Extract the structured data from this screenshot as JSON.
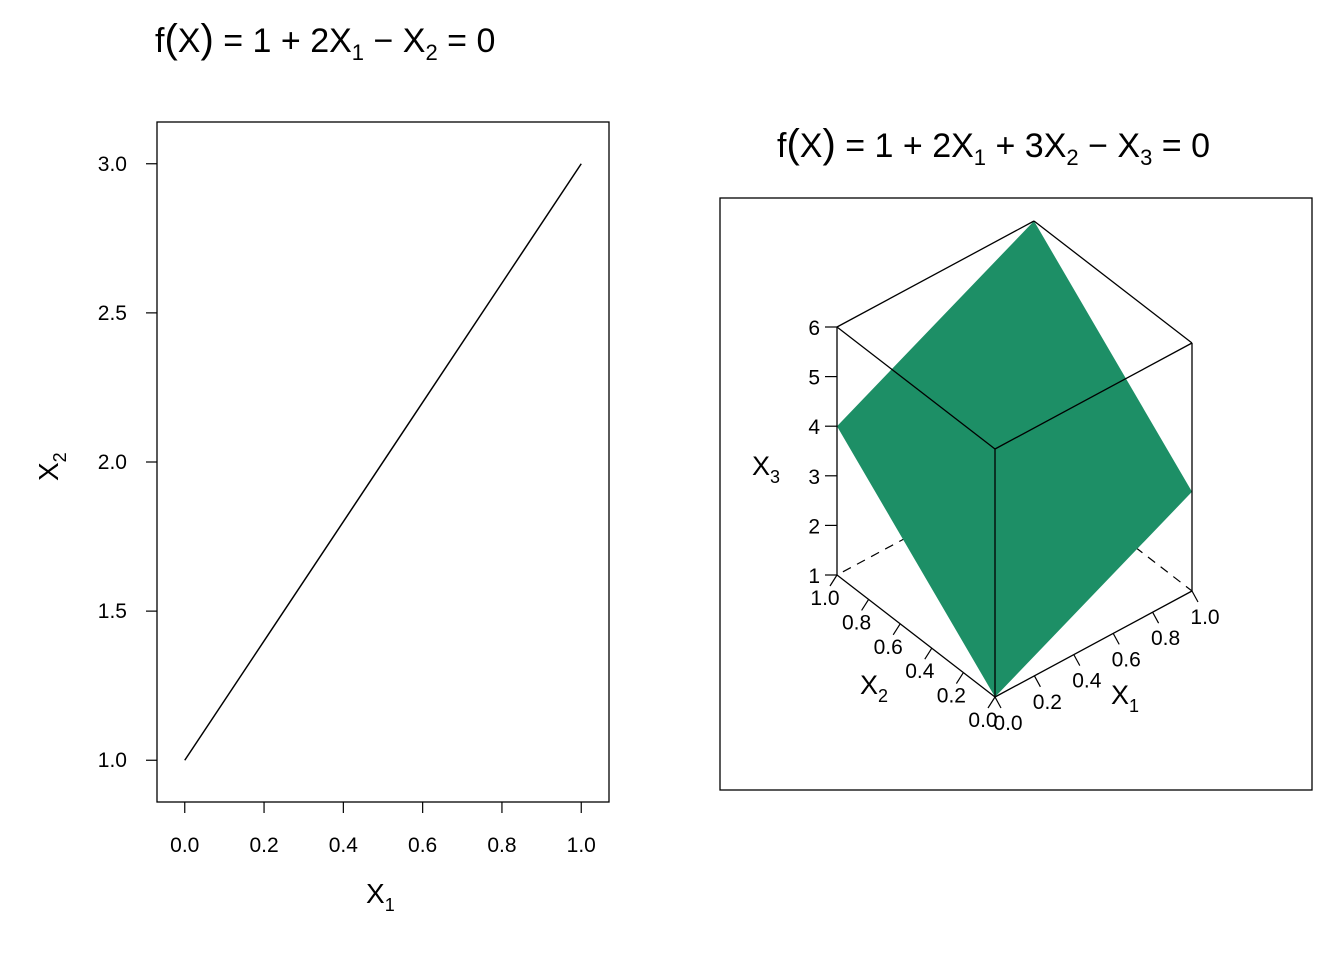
{
  "chart_data": [
    {
      "type": "line",
      "title": "f(X) = 1 + 2X₁ − X₂ = 0",
      "title_parts": {
        "f": "f",
        "lp": "(",
        "x": "X",
        "rp": ")",
        "eq1": " = 1 + 2X",
        "sub1": "1",
        "minus": " − X",
        "sub2": "2",
        "eq2": " = 0"
      },
      "xlabel": {
        "base": "X",
        "sub": "1"
      },
      "ylabel": {
        "base": "X",
        "sub": "2"
      },
      "xlim": [
        -0.07,
        1.07
      ],
      "ylim": [
        0.86,
        3.14
      ],
      "xticks": [
        0.0,
        0.2,
        0.4,
        0.6,
        0.8,
        1.0
      ],
      "xtick_labels": [
        "0.0",
        "0.2",
        "0.4",
        "0.6",
        "0.8",
        "1.0"
      ],
      "yticks": [
        1.0,
        1.5,
        2.0,
        2.5,
        3.0
      ],
      "ytick_labels": [
        "1.0",
        "1.5",
        "2.0",
        "2.5",
        "3.0"
      ],
      "series": [
        {
          "x": [
            0.0,
            1.0
          ],
          "y": [
            1.0,
            3.0
          ]
        }
      ],
      "line_color": "#000000",
      "grid": false
    },
    {
      "type": "surface-3d",
      "title": "f(X) = 1 + 2X₁ + 3X₂ − X₃ = 0",
      "title_parts": {
        "f": "f",
        "lp": "(",
        "x": "X",
        "rp": ")",
        "eq1": " = 1 + 2X",
        "sub1": "1",
        "plus": " + 3X",
        "sub2": "2",
        "minus": " − X",
        "sub3": "3",
        "eq2": " = 0"
      },
      "xlabel": {
        "base": "X",
        "sub": "1"
      },
      "ylabel": {
        "base": "X",
        "sub": "2"
      },
      "zlabel": {
        "base": "X",
        "sub": "3"
      },
      "xlim": [
        0.0,
        1.0
      ],
      "ylim": [
        0.0,
        1.0
      ],
      "zlim": [
        1,
        6
      ],
      "xtick_labels": [
        "0.0",
        "0.2",
        "0.4",
        "0.6",
        "0.8",
        "1.0"
      ],
      "ytick_labels": [
        "0.0",
        "0.2",
        "0.4",
        "0.6",
        "0.8",
        "1.0"
      ],
      "ztick_labels": [
        "1",
        "2",
        "3",
        "4",
        "5",
        "6"
      ],
      "surface": {
        "x": [
          0.0,
          1.0
        ],
        "y": [
          0.0,
          1.0
        ],
        "z": [
          [
            1,
            4
          ],
          [
            3,
            6
          ]
        ]
      },
      "surface_color": "#1d8f66",
      "grid": false
    }
  ]
}
